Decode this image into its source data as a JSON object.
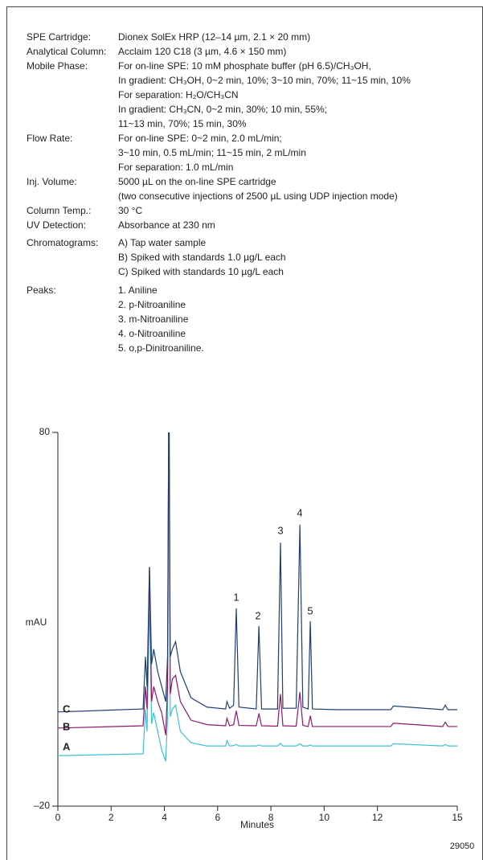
{
  "conditions": [
    {
      "label": "SPE Cartridge:",
      "lines": [
        "Dionex SolEx HRP (12–14 µm, 2.1 × 20 mm)"
      ]
    },
    {
      "label": "Analytical Column:",
      "lines": [
        "Acclaim 120 C18 (3 µm, 4.6 × 150 mm)"
      ]
    },
    {
      "label": "Mobile Phase:",
      "lines": [
        "For on-line SPE: 10 mM phosphate buffer (pH 6.5)/CH₃OH,",
        "In gradient: CH₃OH, 0~2 min, 10%; 3~10 min, 70%; 11~15 min, 10%",
        "For separation: H₂O/CH₃CN",
        "In gradient: CH₃CN, 0~2 min, 30%; 10 min, 55%;",
        "11~13 min, 70%; 15 min, 30%"
      ]
    },
    {
      "label": "Flow  Rate:",
      "lines": [
        "For on-line SPE: 0~2 min, 2.0 mL/min;",
        "3~10 min, 0.5 mL/min; 11~15 min, 2 mL/min",
        "For separation: 1.0 mL/min"
      ]
    },
    {
      "label": "Inj. Volume:",
      "lines": [
        "5000 µL on the on-line SPE cartridge",
        "(two consecutive injections of 2500 µL using UDP injection mode)"
      ]
    },
    {
      "label": "Column Temp.:",
      "lines": [
        "30 °C"
      ]
    },
    {
      "label": "UV Detection:",
      "lines": [
        "Absorbance at 230 nm"
      ]
    },
    {
      "label": "Chromatograms:",
      "lines": [
        "A) Tap water sample",
        "B) Spiked with standards 1.0 µg/L each",
        "C) Spiked with standards 10 µg/L each"
      ]
    },
    {
      "label": "Peaks:",
      "lines": [
        "1. Aniline",
        "2. p-Nitroaniline",
        "3. m-Nitroaniline",
        "4. o-Nitroaniline",
        "5. o,p-Dinitroaniline."
      ]
    }
  ],
  "chart_data": {
    "type": "line",
    "x_label": "Minutes",
    "y_label": "mAU",
    "figure_id": "29050",
    "xlim": [
      0,
      15
    ],
    "xticks": [
      0,
      2,
      4,
      6,
      8,
      10,
      12,
      15
    ],
    "ylim": [
      -20,
      80
    ],
    "yticks": [
      {
        "value": -20,
        "label": "–20"
      },
      80
    ],
    "annotations": [
      "1",
      "2",
      "3",
      "4",
      "5"
    ],
    "x": [
      0,
      3.2,
      3.29,
      3.35,
      3.44,
      3.52,
      3.6,
      3.75,
      3.9,
      4.05,
      4.12,
      4.17,
      4.22,
      4.3,
      4.42,
      4.6,
      5.0,
      5.6,
      6.3,
      6.35,
      6.45,
      6.6,
      6.7,
      6.8,
      7.45,
      7.55,
      7.65,
      8.25,
      8.36,
      8.45,
      8.95,
      9.09,
      9.2,
      9.4,
      9.48,
      9.56,
      10.5,
      12.5,
      12.6,
      14.45,
      14.55,
      14.65,
      15
    ],
    "series": [
      {
        "name": "A",
        "color": "#3cc0d6",
        "values": [
          -6.5,
          -6,
          6,
          0,
          35,
          2,
          5,
          0,
          -5,
          -8,
          4,
          95,
          4,
          6,
          7,
          0,
          -3,
          -3.9,
          -3.9,
          -2.5,
          -3.9,
          -3.8,
          -3.5,
          -3.9,
          -3.9,
          -3.6,
          -3.9,
          -3.9,
          -3.2,
          -3.9,
          -3.9,
          -3.3,
          -3.9,
          -3.9,
          -3.6,
          -3.9,
          -3.9,
          -3.9,
          -3.3,
          -3.9,
          -3.5,
          -3.9,
          -3.9
        ]
      },
      {
        "name": "B",
        "color": "#8b1a6b",
        "values": [
          0.9,
          1.5,
          12,
          6,
          44,
          8,
          12,
          8,
          5,
          -1,
          12,
          95,
          10,
          14,
          15,
          8,
          3,
          1.8,
          1.5,
          3.5,
          1.5,
          1.8,
          5.5,
          1.6,
          1.5,
          4.8,
          1.5,
          1.4,
          10,
          1.5,
          1.4,
          10.5,
          1.6,
          1.3,
          4.2,
          1.3,
          1.3,
          1.3,
          2.2,
          1.3,
          2.5,
          1.3,
          1.3
        ]
      },
      {
        "name": "C",
        "color": "#1f3f6e",
        "values": [
          5.2,
          6.0,
          20,
          12,
          44,
          18,
          22,
          16,
          12,
          8,
          20,
          95,
          20,
          22,
          24,
          16,
          9,
          6.5,
          6,
          8,
          6.2,
          7,
          32.9,
          6.5,
          6,
          28.2,
          6,
          6,
          50.5,
          6.2,
          6.2,
          55.3,
          6.5,
          6,
          29.5,
          6,
          5.8,
          5.8,
          6.8,
          5.8,
          7,
          5.8,
          5.8
        ]
      }
    ]
  }
}
